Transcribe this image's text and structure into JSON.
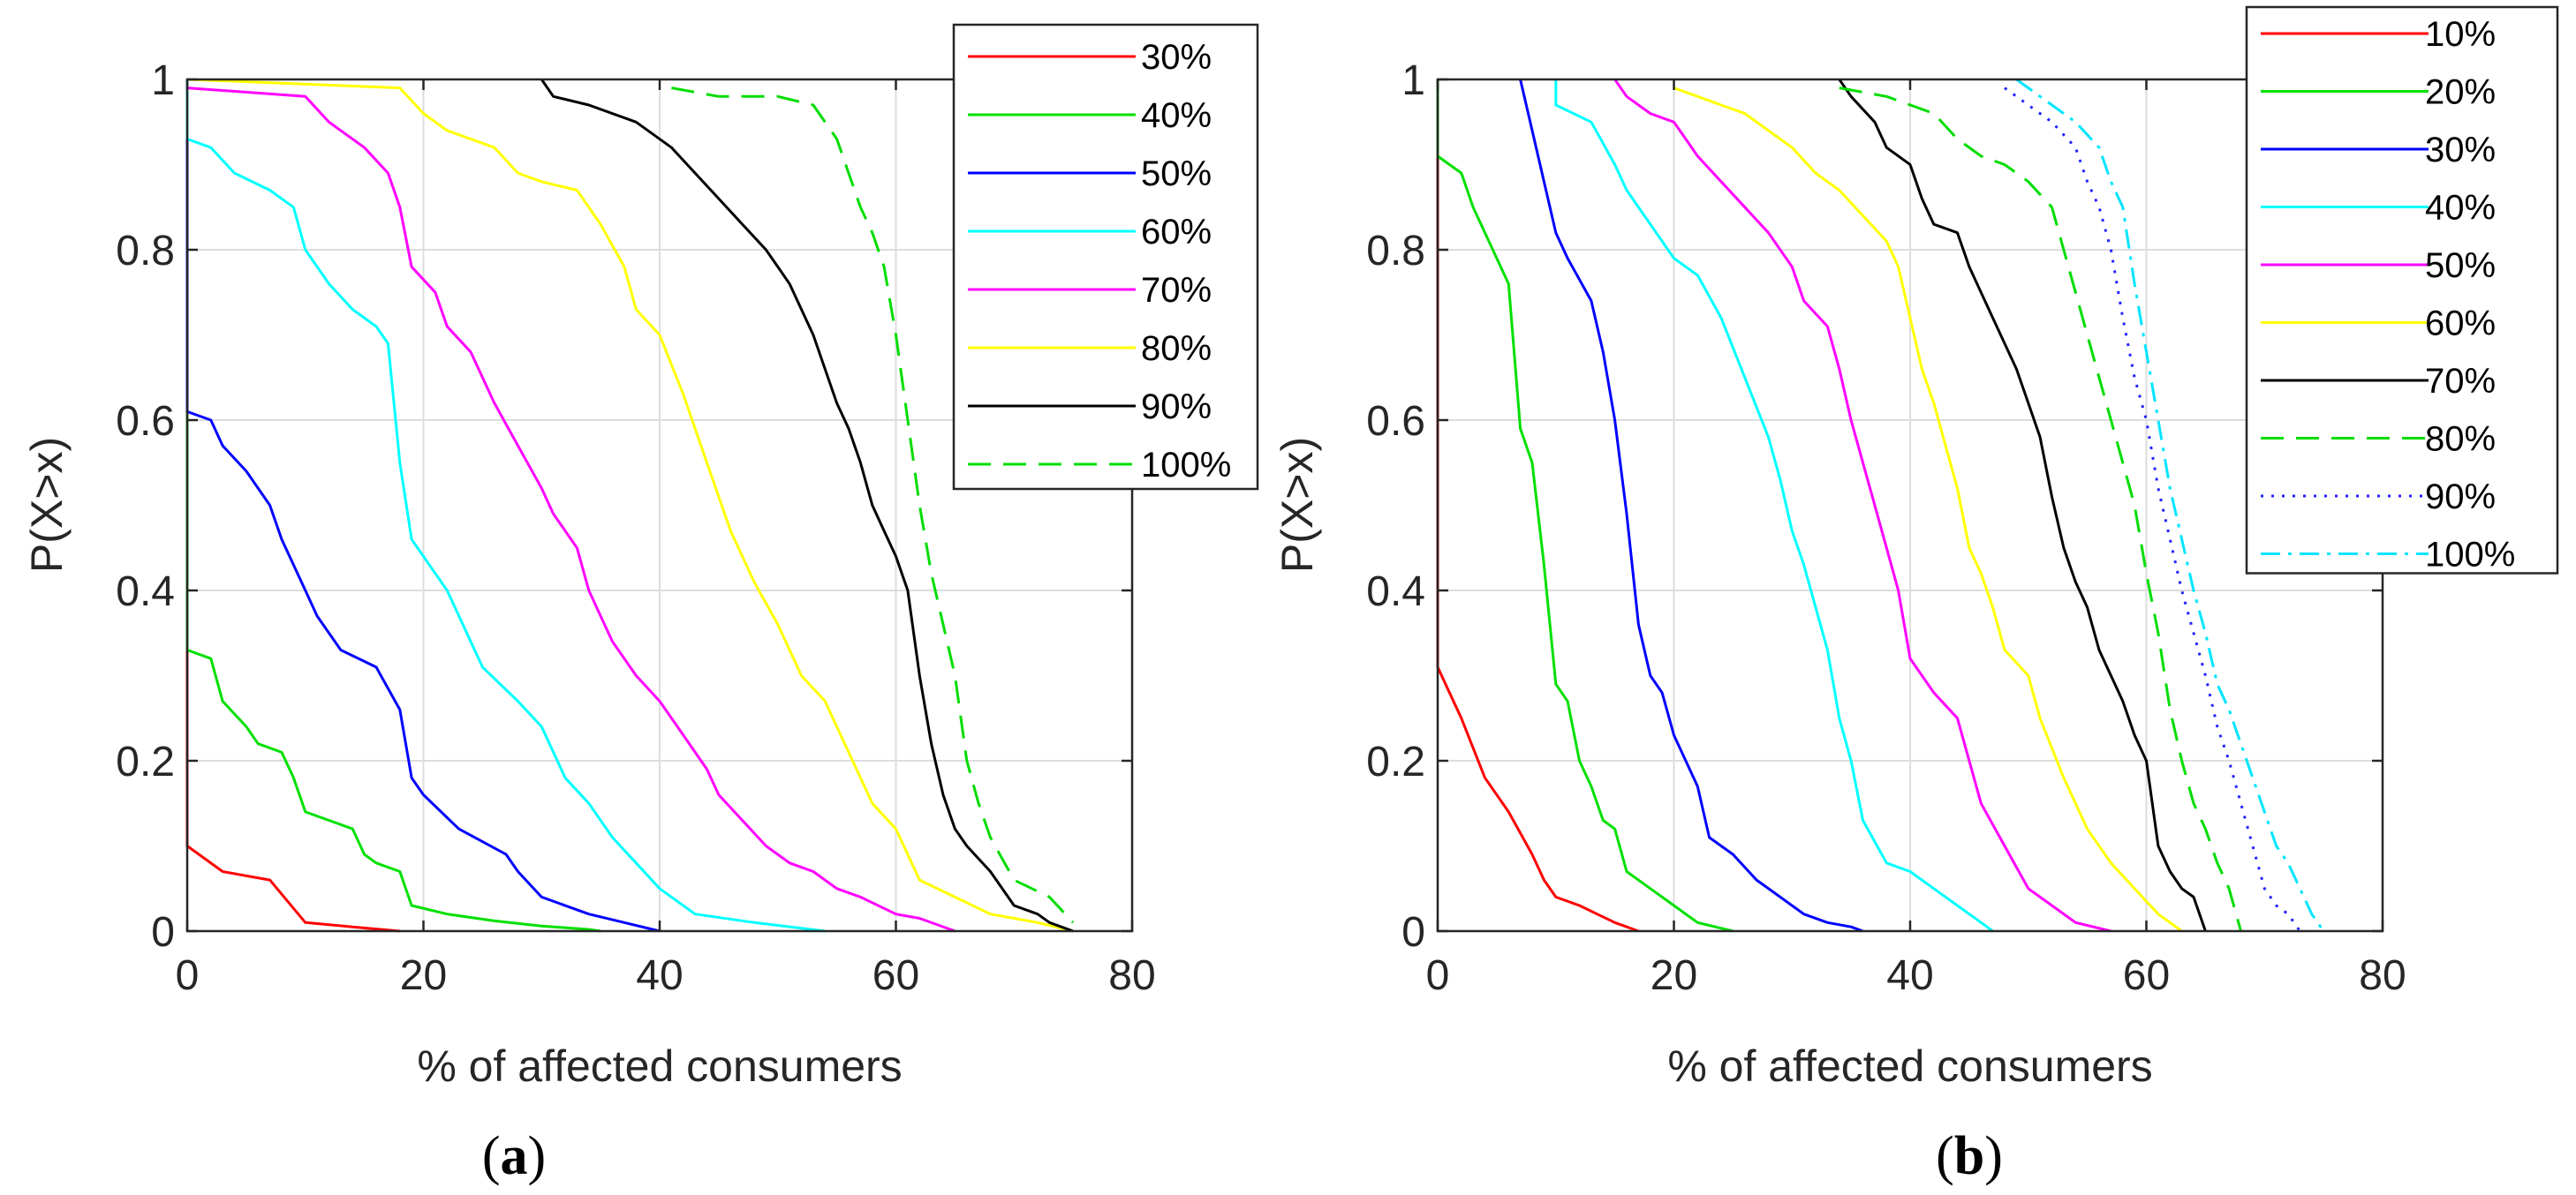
{
  "figure": {
    "panel_labels": [
      "a",
      "b"
    ]
  },
  "chart_data": [
    {
      "type": "line",
      "panel": "a",
      "title": "",
      "xlabel": "% of affected consumers",
      "ylabel": "P(X>x)",
      "xlim": [
        0,
        80
      ],
      "ylim": [
        0,
        1
      ],
      "xticks": [
        0,
        20,
        40,
        60,
        80
      ],
      "yticks": [
        0,
        0.2,
        0.4,
        0.6,
        0.8,
        1
      ],
      "xtick_labels": [
        "0",
        "20",
        "40",
        "60",
        "80"
      ],
      "ytick_labels": [
        "0",
        "0.2",
        "0.4",
        "0.6",
        "0.8",
        "1"
      ],
      "grid": true,
      "legend_position": "top-right",
      "series": [
        {
          "name": "30%",
          "color": "#ff0000",
          "dash": "solid",
          "x": [
            0,
            0,
            0,
            3,
            7,
            10,
            14,
            18
          ],
          "y": [
            1,
            0.33,
            0.1,
            0.07,
            0.06,
            0.01,
            0.005,
            0
          ]
        },
        {
          "name": "40%",
          "color": "#00e000",
          "dash": "solid",
          "x": [
            0,
            0,
            2,
            3,
            5,
            6,
            8,
            9,
            10,
            12,
            14,
            15,
            16,
            18,
            19,
            22,
            26,
            30,
            34,
            35
          ],
          "y": [
            1,
            0.33,
            0.32,
            0.27,
            0.24,
            0.22,
            0.21,
            0.18,
            0.14,
            0.13,
            0.12,
            0.09,
            0.08,
            0.07,
            0.03,
            0.02,
            0.012,
            0.006,
            0.002,
            0
          ]
        },
        {
          "name": "50%",
          "color": "#0000ff",
          "dash": "solid",
          "x": [
            0,
            0,
            2,
            3,
            5,
            7,
            8,
            10,
            11,
            13,
            16,
            18,
            19,
            20,
            23,
            27,
            28,
            30,
            34,
            37,
            40
          ],
          "y": [
            1,
            0.61,
            0.6,
            0.57,
            0.54,
            0.5,
            0.46,
            0.4,
            0.37,
            0.33,
            0.31,
            0.26,
            0.18,
            0.16,
            0.12,
            0.09,
            0.07,
            0.04,
            0.02,
            0.01,
            0
          ]
        },
        {
          "name": "60%",
          "color": "#00ffff",
          "dash": "solid",
          "x": [
            0,
            0,
            2,
            4,
            7,
            9,
            10,
            12,
            14,
            16,
            17,
            18,
            19,
            21,
            22,
            25,
            28,
            30,
            32,
            34,
            36,
            38,
            40,
            43,
            48,
            54
          ],
          "y": [
            1,
            0.93,
            0.92,
            0.89,
            0.87,
            0.85,
            0.8,
            0.76,
            0.73,
            0.71,
            0.69,
            0.55,
            0.46,
            0.42,
            0.4,
            0.31,
            0.27,
            0.24,
            0.18,
            0.15,
            0.11,
            0.08,
            0.05,
            0.02,
            0.01,
            0
          ]
        },
        {
          "name": "70%",
          "color": "#ff00ff",
          "dash": "solid",
          "x": [
            0,
            10,
            12,
            15,
            17,
            18,
            19,
            21,
            22,
            24,
            26,
            28,
            30,
            31,
            33,
            34,
            35,
            36,
            38,
            40,
            42,
            44,
            45,
            47,
            49,
            51,
            53,
            55,
            57,
            60,
            62,
            65
          ],
          "y": [
            0.99,
            0.98,
            0.95,
            0.92,
            0.89,
            0.85,
            0.78,
            0.75,
            0.71,
            0.68,
            0.62,
            0.57,
            0.52,
            0.49,
            0.45,
            0.4,
            0.37,
            0.34,
            0.3,
            0.27,
            0.23,
            0.19,
            0.16,
            0.13,
            0.1,
            0.08,
            0.07,
            0.05,
            0.04,
            0.02,
            0.015,
            0
          ]
        },
        {
          "name": "80%",
          "color": "#ffff00",
          "dash": "solid",
          "x": [
            0,
            18,
            20,
            22,
            26,
            28,
            30,
            33,
            35,
            37,
            38,
            40,
            42,
            44,
            46,
            48,
            50,
            52,
            54,
            55,
            57,
            58,
            60,
            62,
            65,
            68,
            72,
            75
          ],
          "y": [
            1,
            0.99,
            0.96,
            0.94,
            0.92,
            0.89,
            0.88,
            0.87,
            0.83,
            0.78,
            0.73,
            0.7,
            0.63,
            0.55,
            0.47,
            0.41,
            0.36,
            0.3,
            0.27,
            0.24,
            0.18,
            0.15,
            0.12,
            0.06,
            0.04,
            0.02,
            0.01,
            0
          ]
        },
        {
          "name": "90%",
          "color": "#000000",
          "dash": "solid",
          "x": [
            30,
            31,
            34,
            38,
            41,
            43,
            45,
            47,
            49,
            51,
            53,
            55,
            56,
            57,
            58,
            59,
            60,
            61,
            62,
            63,
            64,
            65,
            66,
            68,
            70,
            72,
            73,
            75
          ],
          "y": [
            1,
            0.98,
            0.97,
            0.95,
            0.92,
            0.89,
            0.86,
            0.83,
            0.8,
            0.76,
            0.7,
            0.62,
            0.59,
            0.55,
            0.5,
            0.47,
            0.44,
            0.4,
            0.3,
            0.22,
            0.16,
            0.12,
            0.1,
            0.07,
            0.03,
            0.02,
            0.01,
            0
          ]
        },
        {
          "name": "100%",
          "color": "#00dd00",
          "dash": "dashed",
          "x": [
            41,
            45,
            50,
            53,
            54,
            55,
            57,
            58,
            59,
            60,
            61,
            62,
            63,
            64,
            65,
            66,
            67,
            68,
            70,
            73,
            75
          ],
          "y": [
            0.99,
            0.98,
            0.98,
            0.97,
            0.95,
            0.93,
            0.85,
            0.82,
            0.78,
            0.7,
            0.6,
            0.5,
            0.42,
            0.36,
            0.3,
            0.2,
            0.15,
            0.11,
            0.06,
            0.04,
            0.01
          ]
        }
      ]
    },
    {
      "type": "line",
      "panel": "b",
      "title": "",
      "xlabel": "% of affected consumers",
      "ylabel": "P(X>x)",
      "xlim": [
        0,
        80
      ],
      "ylim": [
        0,
        1
      ],
      "xticks": [
        0,
        20,
        40,
        60,
        80
      ],
      "yticks": [
        0,
        0.2,
        0.4,
        0.6,
        0.8,
        1
      ],
      "xtick_labels": [
        "0",
        "20",
        "40",
        "60",
        "80"
      ],
      "ytick_labels": [
        "0",
        "0.2",
        "0.4",
        "0.6",
        "0.8",
        "1"
      ],
      "grid": true,
      "legend_position": "top-right",
      "series": [
        {
          "name": "10%",
          "color": "#ff0000",
          "dash": "solid",
          "x": [
            0,
            0,
            2,
            4,
            6,
            8,
            9,
            10,
            12,
            15,
            17
          ],
          "y": [
            1,
            0.31,
            0.25,
            0.18,
            0.14,
            0.09,
            0.06,
            0.04,
            0.03,
            0.01,
            0
          ]
        },
        {
          "name": "20%",
          "color": "#00e000",
          "dash": "solid",
          "x": [
            0,
            0,
            2,
            3,
            4,
            6,
            7,
            8,
            9,
            10,
            11,
            12,
            13,
            14,
            15,
            16,
            18,
            20,
            22,
            25
          ],
          "y": [
            1,
            0.91,
            0.89,
            0.85,
            0.82,
            0.76,
            0.59,
            0.55,
            0.43,
            0.29,
            0.27,
            0.2,
            0.17,
            0.13,
            0.12,
            0.07,
            0.05,
            0.03,
            0.01,
            0
          ]
        },
        {
          "name": "30%",
          "color": "#0000ff",
          "dash": "solid",
          "x": [
            7,
            8,
            9,
            10,
            11,
            13,
            14,
            15,
            16,
            17,
            18,
            19,
            20,
            22,
            23,
            25,
            27,
            29,
            31,
            33,
            35,
            36
          ],
          "y": [
            1,
            0.94,
            0.88,
            0.82,
            0.79,
            0.74,
            0.68,
            0.6,
            0.49,
            0.36,
            0.3,
            0.28,
            0.23,
            0.17,
            0.11,
            0.09,
            0.06,
            0.04,
            0.02,
            0.01,
            0.005,
            0
          ]
        },
        {
          "name": "40%",
          "color": "#00ffff",
          "dash": "solid",
          "x": [
            10,
            10,
            13,
            15,
            16,
            18,
            20,
            22,
            24,
            26,
            28,
            29,
            30,
            31,
            32,
            33,
            34,
            35,
            36,
            38,
            40,
            42,
            44,
            46,
            47
          ],
          "y": [
            1,
            0.97,
            0.95,
            0.9,
            0.87,
            0.83,
            0.79,
            0.77,
            0.72,
            0.65,
            0.58,
            0.53,
            0.47,
            0.43,
            0.38,
            0.33,
            0.25,
            0.2,
            0.13,
            0.08,
            0.07,
            0.05,
            0.03,
            0.01,
            0
          ]
        },
        {
          "name": "50%",
          "color": "#ff00ff",
          "dash": "solid",
          "x": [
            15,
            16,
            18,
            20,
            21,
            22,
            24,
            26,
            28,
            30,
            31,
            33,
            34,
            35,
            36,
            37,
            38,
            39,
            40,
            42,
            44,
            45,
            46,
            48,
            50,
            52,
            54,
            57
          ],
          "y": [
            1,
            0.98,
            0.96,
            0.95,
            0.93,
            0.91,
            0.88,
            0.85,
            0.82,
            0.78,
            0.74,
            0.71,
            0.66,
            0.6,
            0.55,
            0.5,
            0.45,
            0.4,
            0.32,
            0.28,
            0.25,
            0.2,
            0.15,
            0.1,
            0.05,
            0.03,
            0.01,
            0
          ]
        },
        {
          "name": "60%",
          "color": "#ffff00",
          "dash": "solid",
          "x": [
            20,
            22,
            24,
            26,
            28,
            30,
            32,
            34,
            36,
            38,
            39,
            40,
            41,
            42,
            43,
            44,
            45,
            46,
            47,
            48,
            50,
            51,
            53,
            55,
            57,
            59,
            61,
            63
          ],
          "y": [
            0.99,
            0.98,
            0.97,
            0.96,
            0.94,
            0.92,
            0.89,
            0.87,
            0.84,
            0.81,
            0.78,
            0.72,
            0.66,
            0.62,
            0.57,
            0.52,
            0.45,
            0.42,
            0.38,
            0.33,
            0.3,
            0.25,
            0.18,
            0.12,
            0.08,
            0.05,
            0.02,
            0
          ]
        },
        {
          "name": "70%",
          "color": "#000000",
          "dash": "solid",
          "x": [
            34,
            35,
            37,
            38,
            40,
            41,
            42,
            44,
            45,
            47,
            49,
            50,
            51,
            52,
            53,
            54,
            55,
            56,
            58,
            59,
            60,
            61,
            62,
            63,
            64,
            65
          ],
          "y": [
            1,
            0.98,
            0.95,
            0.92,
            0.9,
            0.86,
            0.83,
            0.82,
            0.78,
            0.72,
            0.66,
            0.62,
            0.58,
            0.51,
            0.45,
            0.41,
            0.38,
            0.33,
            0.27,
            0.23,
            0.2,
            0.1,
            0.07,
            0.05,
            0.04,
            0
          ]
        },
        {
          "name": "80%",
          "color": "#00dd00",
          "dash": "dashed",
          "x": [
            34,
            38,
            42,
            44,
            46,
            48,
            50,
            52,
            53,
            54,
            55,
            56,
            57,
            58,
            59,
            60,
            61,
            62,
            63,
            64,
            65,
            66,
            67,
            68
          ],
          "y": [
            0.99,
            0.98,
            0.96,
            0.93,
            0.91,
            0.9,
            0.88,
            0.85,
            0.8,
            0.75,
            0.7,
            0.65,
            0.6,
            0.55,
            0.5,
            0.42,
            0.35,
            0.26,
            0.2,
            0.15,
            0.12,
            0.08,
            0.05,
            0
          ]
        },
        {
          "name": "90%",
          "color": "#2222ff",
          "dash": "dotted",
          "x": [
            48,
            50,
            52,
            54,
            55,
            56,
            57,
            58,
            59,
            60,
            61,
            62,
            63,
            64,
            65,
            66,
            67,
            68,
            69,
            70,
            71,
            72,
            73
          ],
          "y": [
            0.99,
            0.97,
            0.95,
            0.92,
            0.88,
            0.85,
            0.8,
            0.72,
            0.65,
            0.6,
            0.52,
            0.46,
            0.4,
            0.35,
            0.3,
            0.24,
            0.2,
            0.15,
            0.1,
            0.05,
            0.03,
            0.02,
            0
          ]
        },
        {
          "name": "100%",
          "color": "#00e5ff",
          "dash": "dashdot",
          "x": [
            49,
            50,
            52,
            54,
            56,
            57,
            58,
            59,
            60,
            61,
            62,
            63,
            64,
            65,
            66,
            67,
            68,
            69,
            70,
            71,
            72,
            73,
            74,
            75
          ],
          "y": [
            1,
            0.99,
            0.97,
            0.95,
            0.92,
            0.88,
            0.85,
            0.76,
            0.68,
            0.6,
            0.52,
            0.46,
            0.4,
            0.35,
            0.29,
            0.26,
            0.22,
            0.18,
            0.14,
            0.1,
            0.08,
            0.05,
            0.02,
            0
          ]
        }
      ]
    }
  ]
}
